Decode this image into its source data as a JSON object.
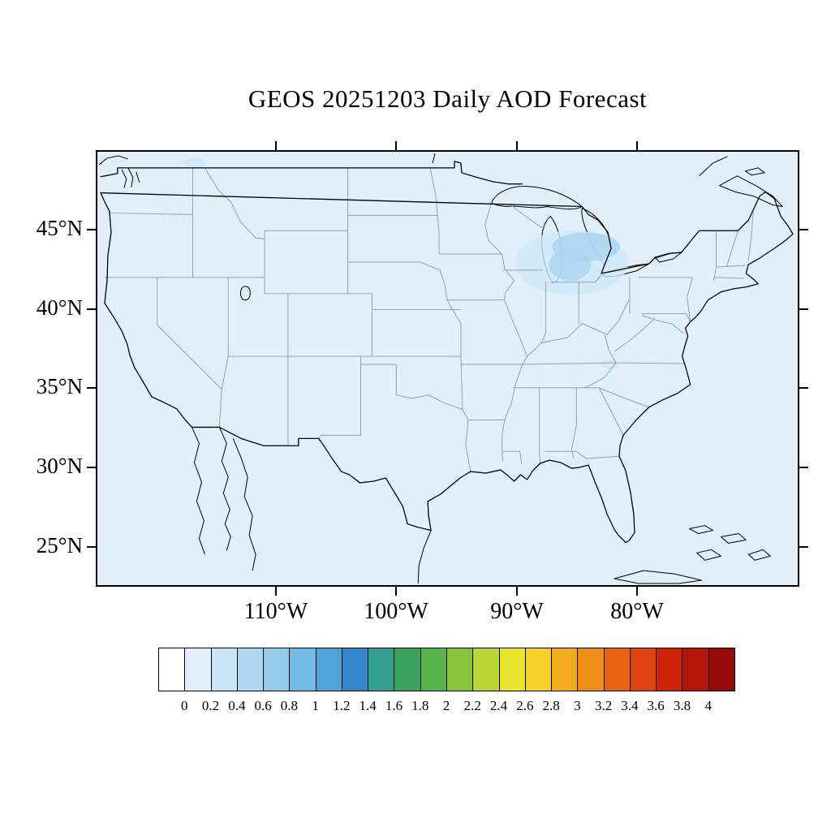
{
  "title": "GEOS 20251203 Daily AOD Forecast",
  "colors": {
    "ocean": "#e0effa",
    "land": "#e0effa",
    "plume_light": "#cfe8f8",
    "plume_mid": "#aad5f0",
    "state_line": "#8fa3b0",
    "outline": "#000000",
    "frame": "#000000"
  },
  "axes": {
    "lat": {
      "labels": [
        "45°N",
        "40°N",
        "35°N",
        "30°N",
        "25°N"
      ]
    },
    "lon": {
      "labels": [
        "110°W",
        "100°W",
        "90°W",
        "80°W"
      ]
    }
  },
  "colorbar": {
    "min": 0,
    "max": 4,
    "interval": 0.2,
    "tick_labels": [
      "0",
      "0.2",
      "0.4",
      "0.6",
      "0.8",
      "1",
      "1.2",
      "1.4",
      "1.6",
      "1.8",
      "2",
      "2.2",
      "2.4",
      "2.6",
      "2.8",
      "3",
      "3.2",
      "3.4",
      "3.6",
      "3.8",
      "4"
    ],
    "colors": [
      "#ffffff",
      "#e0effa",
      "#c8e4f6",
      "#aed8f2",
      "#93cbed",
      "#74bae6",
      "#4fa3db",
      "#3388cd",
      "#359f8f",
      "#3aa45e",
      "#58b34a",
      "#87c43e",
      "#bad633",
      "#e8e52c",
      "#f4d028",
      "#f2ae1f",
      "#ef8b17",
      "#ea6511",
      "#e04110",
      "#cd2409",
      "#b31407",
      "#930b04"
    ]
  },
  "chart_data": {
    "type": "heatmap",
    "title": "GEOS 20251203 Daily AOD Forecast",
    "model": "GEOS",
    "date": "20251203",
    "variable": "Daily AOD (Aerosol Optical Depth) Forecast",
    "region": "Continental United States",
    "x_tick_labels": [
      "110°W",
      "100°W",
      "90°W",
      "80°W"
    ],
    "y_tick_labels": [
      "45°N",
      "40°N",
      "35°N",
      "30°N",
      "25°N"
    ],
    "approx_extent": {
      "lon": [
        -125,
        -66.5
      ],
      "lat": [
        22.5,
        50
      ]
    },
    "colorbar": {
      "min": 0,
      "max": 4,
      "interval": 0.2,
      "orientation": "horizontal",
      "position": "bottom"
    },
    "field_values": [
      {
        "region": "CONUS background (land and ocean)",
        "aod_range": [
          0.0,
          0.2
        ]
      },
      {
        "region": "Great Lakes area (Lake Michigan / Lake Huron vicinity)",
        "aod_range": [
          0.2,
          0.6
        ]
      },
      {
        "region": "small patch near northern border (top-left of plume set)",
        "aod_range": [
          0.2,
          0.4
        ]
      },
      {
        "region": "small patch near West Virginia",
        "aod_range": [
          0.2,
          0.4
        ]
      }
    ],
    "grid": false,
    "legend_position": "bottom colorbar"
  }
}
